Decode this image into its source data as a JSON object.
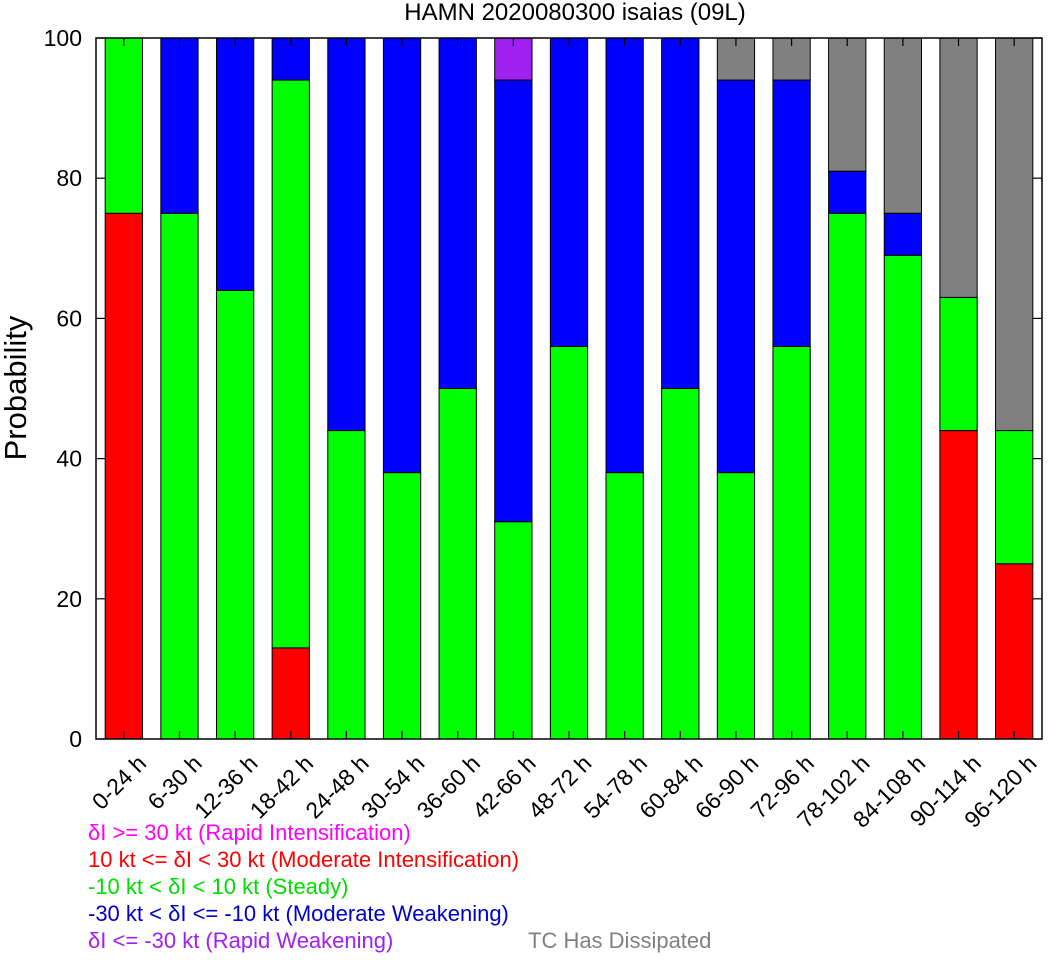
{
  "chart_data": {
    "type": "bar",
    "stacked": true,
    "title": "HAMN 2020080300 isaias (09L)",
    "xlabel": "",
    "ylabel": "Probability",
    "ylim": [
      0,
      100
    ],
    "yticks": [
      0,
      20,
      40,
      60,
      80,
      100
    ],
    "grid": false,
    "legend_position": "bottom-left",
    "categories": [
      "0-24 h",
      "6-30 h",
      "12-36 h",
      "18-42 h",
      "24-48 h",
      "30-54 h",
      "36-60 h",
      "42-66 h",
      "48-72 h",
      "54-78 h",
      "60-84 h",
      "66-90 h",
      "72-96 h",
      "78-102 h",
      "84-108 h",
      "90-114 h",
      "96-120 h"
    ],
    "series": [
      {
        "key": "rapid_intensification",
        "color": "#ff00ff",
        "values": [
          0,
          0,
          0,
          0,
          0,
          0,
          0,
          0,
          0,
          0,
          0,
          0,
          0,
          0,
          0,
          0,
          0
        ]
      },
      {
        "key": "moderate_intensification",
        "color": "#ff0000",
        "values": [
          75,
          0,
          0,
          13,
          0,
          0,
          0,
          0,
          0,
          0,
          0,
          0,
          0,
          0,
          0,
          44,
          25
        ]
      },
      {
        "key": "steady",
        "color": "#00ff00",
        "values": [
          25,
          75,
          64,
          81,
          44,
          38,
          50,
          31,
          56,
          38,
          50,
          38,
          56,
          75,
          69,
          19,
          19
        ]
      },
      {
        "key": "moderate_weakening",
        "color": "#0000ff",
        "values": [
          0,
          25,
          36,
          6,
          56,
          62,
          50,
          63,
          44,
          62,
          50,
          56,
          38,
          6,
          6,
          0,
          0
        ]
      },
      {
        "key": "rapid_weakening",
        "color": "#a020f0",
        "values": [
          0,
          0,
          0,
          0,
          0,
          0,
          0,
          6,
          0,
          0,
          0,
          0,
          0,
          0,
          0,
          0,
          0
        ]
      },
      {
        "key": "dissipated",
        "color": "#808080",
        "values": [
          0,
          0,
          0,
          0,
          0,
          0,
          0,
          0,
          0,
          0,
          0,
          6,
          6,
          19,
          25,
          37,
          56
        ]
      }
    ],
    "legend": [
      {
        "text": "δI >= 30 kt (Rapid Intensification)",
        "color": "#ff00ff"
      },
      {
        "text": "10 kt <= δI < 30 kt (Moderate Intensification)",
        "color": "#ff0000"
      },
      {
        "text": "-10 kt < δI < 10 kt (Steady)",
        "color": "#00dd00"
      },
      {
        "text": "-30 kt < δI <= -10 kt (Moderate Weakening)",
        "color": "#0000cc"
      },
      {
        "text": "δI <= -30 kt (Rapid Weakening)",
        "color": "#a020f0"
      },
      {
        "text": "TC Has Dissipated",
        "color": "#808080"
      }
    ]
  }
}
